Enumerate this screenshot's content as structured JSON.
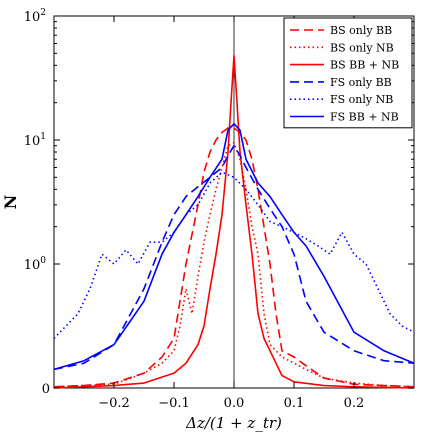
{
  "chart_data": {
    "type": "line",
    "xlabel": "Δz/(1 + z_tr)",
    "ylabel": "N",
    "xlim": [
      -0.3,
      0.3
    ],
    "ylim": [
      0,
      100
    ],
    "yscale": "symlog",
    "xticks": [
      -0.2,
      -0.1,
      0.0,
      0.1,
      0.2
    ],
    "xtick_labels": [
      "−0.2",
      "−0.1",
      "0.0",
      "0.1",
      "0.2"
    ],
    "yticks": [
      {
        "value": 0,
        "base": "0",
        "exp": ""
      },
      {
        "value": 1,
        "base": "10",
        "exp": "0"
      },
      {
        "value": 10,
        "base": "10",
        "exp": "1"
      },
      {
        "value": 100,
        "base": "10",
        "exp": "2"
      }
    ],
    "vline_x": 0.0,
    "grid": false,
    "legend_position": "top-right",
    "series": [
      {
        "name": "BS only BB",
        "color": "#ff0000",
        "dash": "dashed",
        "x": [
          -0.3,
          -0.25,
          -0.2,
          -0.15,
          -0.12,
          -0.1,
          -0.08,
          -0.06,
          -0.05,
          -0.04,
          -0.03,
          -0.02,
          -0.01,
          0.0,
          0.01,
          0.02,
          0.03,
          0.04,
          0.05,
          0.06,
          0.07,
          0.08,
          0.1,
          0.12,
          0.15,
          0.2,
          0.25,
          0.3
        ],
        "y": [
          0.01,
          0.02,
          0.04,
          0.12,
          0.25,
          0.4,
          1.0,
          3.0,
          5.5,
          8.0,
          10.0,
          11.5,
          12.5,
          12.5,
          11.5,
          10.0,
          7.0,
          4.0,
          2.0,
          1.0,
          0.6,
          0.3,
          0.25,
          0.18,
          0.08,
          0.03,
          0.02,
          0.01
        ]
      },
      {
        "name": "BS only NB",
        "color": "#ff0000",
        "dash": "dotted",
        "x": [
          -0.3,
          -0.25,
          -0.2,
          -0.15,
          -0.12,
          -0.1,
          -0.09,
          -0.08,
          -0.07,
          -0.06,
          -0.05,
          -0.04,
          -0.03,
          -0.02,
          -0.01,
          0.0,
          0.01,
          0.02,
          0.03,
          0.04,
          0.05,
          0.06,
          0.08,
          0.1,
          0.12,
          0.15,
          0.2,
          0.25,
          0.3
        ],
        "y": [
          0.01,
          0.02,
          0.03,
          0.12,
          0.2,
          0.3,
          0.5,
          0.8,
          0.6,
          0.9,
          1.5,
          2.5,
          4.0,
          6.0,
          9.0,
          9.5,
          7.0,
          4.0,
          2.0,
          1.2,
          0.6,
          0.35,
          0.25,
          0.2,
          0.15,
          0.08,
          0.04,
          0.02,
          0.01
        ]
      },
      {
        "name": "BS BB + NB",
        "color": "#ff0000",
        "dash": "solid",
        "x": [
          -0.3,
          -0.25,
          -0.2,
          -0.15,
          -0.1,
          -0.08,
          -0.06,
          -0.05,
          -0.04,
          -0.03,
          -0.02,
          -0.01,
          -0.005,
          0.0,
          0.005,
          0.01,
          0.02,
          0.03,
          0.04,
          0.05,
          0.06,
          0.07,
          0.08,
          0.1,
          0.15,
          0.2,
          0.3
        ],
        "y": [
          0.0,
          0.01,
          0.02,
          0.04,
          0.12,
          0.2,
          0.35,
          0.5,
          0.8,
          1.2,
          2.5,
          8.0,
          20.0,
          48.0,
          20.0,
          8.0,
          3.0,
          1.2,
          0.6,
          0.4,
          0.3,
          0.2,
          0.1,
          0.05,
          0.02,
          0.01,
          0.0
        ]
      },
      {
        "name": "FS only BB",
        "color": "#0000ff",
        "dash": "dashed",
        "x": [
          -0.3,
          -0.25,
          -0.2,
          -0.15,
          -0.12,
          -0.1,
          -0.08,
          -0.06,
          -0.04,
          -0.02,
          -0.01,
          0.0,
          0.01,
          0.02,
          0.04,
          0.06,
          0.08,
          0.1,
          0.12,
          0.15,
          0.2,
          0.25,
          0.3
        ],
        "y": [
          0.15,
          0.2,
          0.35,
          0.8,
          1.5,
          2.5,
          3.5,
          4.2,
          5.0,
          6.0,
          7.5,
          9.0,
          7.5,
          6.0,
          4.0,
          2.8,
          2.0,
          1.2,
          0.7,
          0.45,
          0.3,
          0.22,
          0.2
        ]
      },
      {
        "name": "FS only NB",
        "color": "#0000ff",
        "dash": "dotted",
        "x": [
          -0.3,
          -0.28,
          -0.26,
          -0.24,
          -0.22,
          -0.2,
          -0.18,
          -0.16,
          -0.14,
          -0.12,
          -0.1,
          -0.08,
          -0.06,
          -0.04,
          -0.02,
          0.0,
          0.02,
          0.04,
          0.06,
          0.08,
          0.1,
          0.12,
          0.14,
          0.16,
          0.18,
          0.2,
          0.22,
          0.24,
          0.26,
          0.28,
          0.3
        ],
        "y": [
          0.4,
          0.5,
          0.6,
          0.8,
          1.2,
          1.0,
          1.3,
          1.0,
          1.5,
          1.5,
          1.8,
          2.5,
          3.0,
          4.5,
          5.5,
          5.0,
          4.0,
          3.0,
          2.2,
          2.0,
          1.8,
          1.6,
          1.4,
          1.2,
          1.8,
          1.2,
          1.0,
          0.8,
          0.6,
          0.5,
          0.45
        ]
      },
      {
        "name": "FS BB + NB",
        "color": "#0000ff",
        "dash": "solid",
        "x": [
          -0.3,
          -0.25,
          -0.2,
          -0.15,
          -0.12,
          -0.1,
          -0.08,
          -0.06,
          -0.04,
          -0.02,
          -0.01,
          0.0,
          0.01,
          0.02,
          0.04,
          0.06,
          0.08,
          0.1,
          0.12,
          0.15,
          0.2,
          0.25,
          0.3
        ],
        "y": [
          0.15,
          0.22,
          0.35,
          0.7,
          1.2,
          1.8,
          2.5,
          3.5,
          5.0,
          7.0,
          12.0,
          13.5,
          12.0,
          7.0,
          4.5,
          3.5,
          2.5,
          1.8,
          1.4,
          0.9,
          0.45,
          0.3,
          0.2
        ]
      }
    ]
  }
}
